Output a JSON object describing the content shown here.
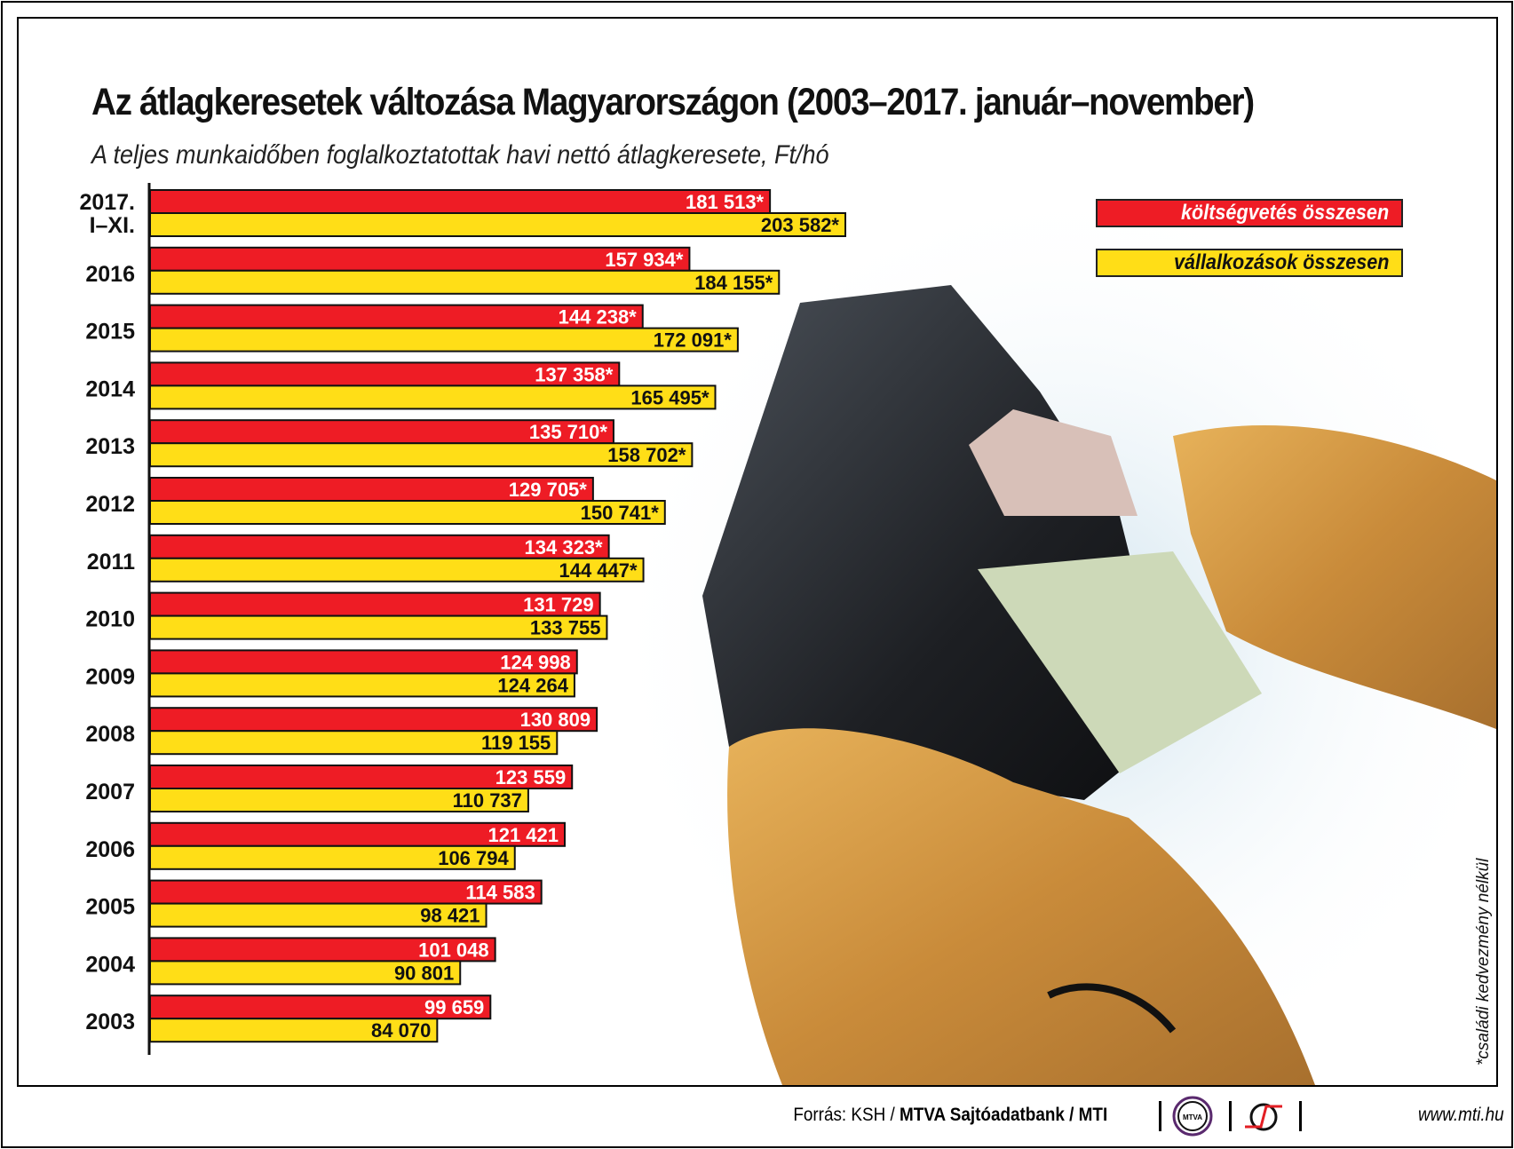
{
  "title": "Az átlagkeresetek változása Magyarországon (2003–2017. január–november)",
  "subtitle": "A teljes munkaidőben foglalkoztatottak havi nettó átlagkeresete, Ft/hó",
  "legend": {
    "public": "költségvetés összesen",
    "business": "vállalkozások összesen"
  },
  "footnote": "*családi kedvezmény nélkül",
  "footer": {
    "source_prefix": "Forrás: KSH / ",
    "source_bold": "MTVA Sajtóadatbank / MTI",
    "logo_mtva": "MTVA",
    "url": "www.mti.hu"
  },
  "colors": {
    "public": "#ee1c25",
    "business": "#ffde17"
  },
  "chart_data": {
    "type": "bar",
    "orientation": "horizontal",
    "title": "Az átlagkeresetek változása Magyarországon (2003–2017. január–november)",
    "subtitle": "A teljes munkaidőben foglalkoztatottak havi nettó átlagkeresete, Ft/hó",
    "categories": [
      "2017.\nI–XI.",
      "2016",
      "2015",
      "2014",
      "2013",
      "2012",
      "2011",
      "2010",
      "2009",
      "2008",
      "2007",
      "2006",
      "2005",
      "2004",
      "2003"
    ],
    "series": [
      {
        "name": "költségvetés összesen",
        "values": [
          181513,
          157934,
          144238,
          137358,
          135710,
          129705,
          134323,
          131729,
          124998,
          130809,
          123559,
          121421,
          114583,
          101048,
          99659
        ],
        "labels": [
          "181 513*",
          "157 934*",
          "144 238*",
          "137 358*",
          "135 710*",
          "129 705*",
          "134 323*",
          "131 729",
          "124 998",
          "130 809",
          "123 559",
          "121 421",
          "114 583",
          "101 048",
          "99 659"
        ]
      },
      {
        "name": "vállalkozások összesen",
        "values": [
          203582,
          184155,
          172091,
          165495,
          158702,
          150741,
          144447,
          133755,
          124264,
          119155,
          110737,
          106794,
          98421,
          90801,
          84070
        ],
        "labels": [
          "203 582*",
          "184 155*",
          "172 091*",
          "165 495*",
          "158 702*",
          "150 741*",
          "144 447*",
          "133 755",
          "124 264",
          "119 155",
          "110 737",
          "106 794",
          "98 421",
          "90 801",
          "84 070"
        ]
      }
    ],
    "xlim": [
      0,
      260000
    ],
    "grid": false,
    "legend_position": "top-right"
  }
}
